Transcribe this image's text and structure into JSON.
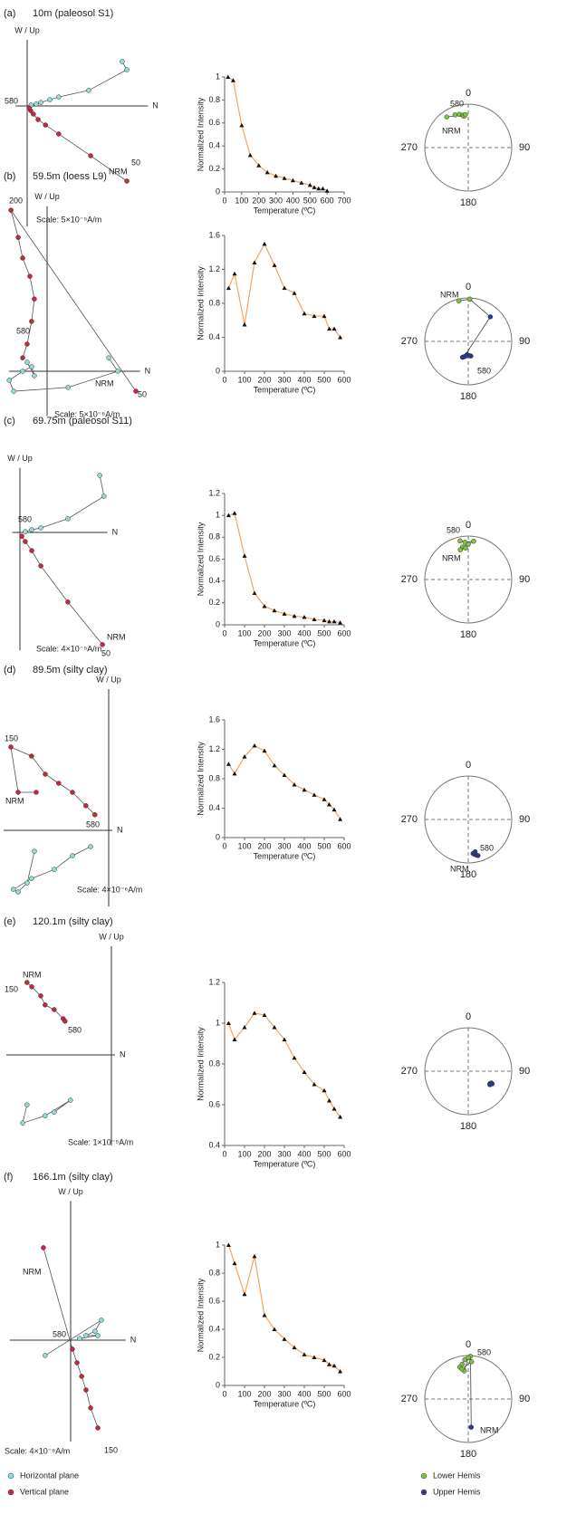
{
  "panels": [
    {
      "label": "(a)",
      "title": "10m (paleosol S1)",
      "zijderveld": {
        "up_label": "W / Up",
        "north_label": "N",
        "scale": "Scale: 5×10⁻⁵A/m",
        "xlim": [
          -0.3,
          3.1
        ],
        "ylim": [
          -3.1,
          1.7
        ],
        "horizontal": {
          "x": [
            2.44,
            2.56,
            1.58,
            0.81,
            0.58,
            0.35,
            0.23,
            0.1
          ],
          "y": [
            1.14,
            0.93,
            0.4,
            0.23,
            0.16,
            0.09,
            0.05,
            0.02
          ]
        },
        "vertical": {
          "x": [
            2.56,
            1.63,
            0.81,
            0.47,
            0.28,
            0.16,
            0.09,
            0.05
          ],
          "y": [
            -1.93,
            -1.28,
            -0.72,
            -0.49,
            -0.35,
            -0.21,
            -0.12,
            -0.05
          ]
        },
        "annotations": [
          "580",
          "NRM",
          "50"
        ]
      },
      "demag": {
        "type": "line",
        "ylabel": "Normalized Intensity",
        "xlabel": "Temperature (ºC)",
        "x": [
          20,
          50,
          100,
          150,
          200,
          250,
          300,
          350,
          400,
          450,
          500,
          525,
          550,
          575,
          600
        ],
        "values": [
          1,
          0.97,
          0.58,
          0.32,
          0.23,
          0.17,
          0.14,
          0.12,
          0.1,
          0.08,
          0.06,
          0.04,
          0.03,
          0.03,
          0.01
        ],
        "xlim": [
          0,
          700
        ],
        "xticks": [
          0,
          100,
          200,
          300,
          400,
          500,
          600,
          700
        ],
        "ylim": [
          0,
          1
        ],
        "yticks": [
          0,
          0.2,
          0.4,
          0.6,
          0.8,
          1
        ]
      },
      "stereonet": {
        "labels": [
          "0",
          "90",
          "180",
          "270"
        ],
        "dec": [
          338,
          345,
          350,
          352,
          355,
          325
        ],
        "inc": [
          20,
          22,
          25,
          28,
          25,
          15
        ],
        "annotations": [
          "580",
          "NRM"
        ]
      }
    },
    {
      "label": "(b)",
      "title": "59.5m (loess L9)",
      "zijderveld": {
        "up_label": "W / Up",
        "north_label": "N",
        "scale": "Scale: 5×10⁻⁶A/m",
        "xlim": [
          -1.1,
          2.7
        ],
        "ylim": [
          -1.3,
          4.8
        ],
        "horizontal": {
          "x": [
            1.79,
            2.05,
            0.61,
            -0.97,
            -1.1,
            -0.71,
            -0.45,
            -0.37,
            -0.58
          ],
          "y": [
            0.39,
            0,
            -0.47,
            -0.58,
            -0.26,
            0,
            0.13,
            -0.13,
            0.26
          ]
        },
        "vertical": {
          "x": [
            2.58,
            -1.05,
            -0.84,
            -0.71,
            -0.5,
            -0.37,
            -0.45,
            -0.58,
            -0.71
          ],
          "y": [
            -0.58,
            4.68,
            3.89,
            3.29,
            2.76,
            2.1,
            1.45,
            0.79,
            0.39
          ]
        },
        "annotations": [
          "200",
          "580",
          "NRM",
          "50"
        ]
      },
      "demag": {
        "type": "line",
        "ylabel": "Normalized Intensity",
        "xlabel": "Temperature (ºC)",
        "x": [
          20,
          50,
          100,
          150,
          200,
          250,
          300,
          350,
          400,
          450,
          500,
          525,
          550,
          580
        ],
        "values": [
          0.98,
          1.15,
          0.55,
          1.28,
          1.5,
          1.25,
          0.98,
          0.92,
          0.68,
          0.65,
          0.65,
          0.5,
          0.5,
          0.4
        ],
        "xlim": [
          0,
          600
        ],
        "xticks": [
          0,
          100,
          200,
          300,
          400,
          500,
          600
        ],
        "ylim": [
          0,
          1.6
        ],
        "yticks": [
          0,
          0.4,
          0.8,
          1.2,
          1.6
        ]
      },
      "stereonet": {
        "labels": [
          "0",
          "90",
          "180",
          "270"
        ],
        "dec": [
          347,
          2,
          42,
          195,
          170,
          185,
          200,
          175,
          190
        ],
        "inc": [
          5,
          3,
          -25,
          -60,
          -62,
          -65,
          -58,
          -63,
          -62
        ],
        "annotations": [
          "NRM",
          "580"
        ]
      }
    },
    {
      "label": "(c)",
      "title": "69.75m (paleosol S11)",
      "zijderveld": {
        "up_label": "W / Up",
        "north_label": "N",
        "scale": "Scale: 4×10⁻⁵A/m",
        "xlim": [
          -0.2,
          2.3
        ],
        "ylim": [
          -3.1,
          1.7
        ],
        "horizontal": {
          "x": [
            2.1,
            2.21,
            1.26,
            0.55,
            0.31,
            0.14
          ],
          "y": [
            1.5,
            0.95,
            0.36,
            0.12,
            0.07,
            0.02
          ]
        },
        "vertical": {
          "x": [
            2.17,
            1.26,
            0.55,
            0.31,
            0.14,
            0.05
          ],
          "y": [
            -2.95,
            -1.83,
            -0.88,
            -0.48,
            -0.24,
            -0.1
          ]
        },
        "annotations": [
          "580",
          "NRM",
          "50"
        ]
      },
      "demag": {
        "type": "line",
        "ylabel": "Normalized Intensity",
        "xlabel": "Temperature (ºC)",
        "x": [
          20,
          50,
          100,
          150,
          200,
          250,
          300,
          350,
          400,
          450,
          500,
          525,
          550,
          580
        ],
        "values": [
          1,
          1.02,
          0.63,
          0.29,
          0.17,
          0.13,
          0.1,
          0.08,
          0.07,
          0.05,
          0.04,
          0.03,
          0.03,
          0.02
        ],
        "xlim": [
          0,
          600
        ],
        "xticks": [
          0,
          100,
          200,
          300,
          400,
          500,
          600
        ],
        "ylim": [
          0,
          1.2
        ],
        "yticks": [
          0,
          0.2,
          0.4,
          0.6,
          0.8,
          1,
          1.2
        ]
      },
      "stereonet": {
        "labels": [
          "0",
          "90",
          "180",
          "270"
        ],
        "dec": [
          348,
          355,
          8,
          0,
          350,
          345,
          355
        ],
        "inc": [
          10,
          15,
          12,
          20,
          25,
          30,
          28
        ],
        "annotations": [
          "580",
          "NRM"
        ]
      }
    },
    {
      "label": "(d)",
      "title": "89.5m (silty clay)",
      "zijderveld": {
        "up_label": "W / Up",
        "north_label": "N",
        "scale": "Scale: 4×10⁻⁶A/m",
        "xlim": [
          -2.9,
          0.1
        ],
        "ylim": [
          -2.1,
          3.9
        ],
        "horizontal": {
          "x": [
            -2.05,
            -2.25,
            -2.5,
            -2.63,
            -2.13,
            -1.5,
            -1,
            -0.5
          ],
          "y": [
            -0.58,
            -1.45,
            -1.7,
            -1.63,
            -1.33,
            -1.08,
            -0.7,
            -0.45
          ]
        },
        "vertical": {
          "x": [
            -2,
            -2.5,
            -2.7,
            -2.13,
            -1.75,
            -1.38,
            -1,
            -0.63,
            -0.38
          ],
          "y": [
            1.05,
            1.05,
            2.3,
            2.05,
            1.55,
            1.3,
            1.05,
            0.68,
            0.43
          ]
        },
        "annotations": [
          "150",
          "NRM",
          "580"
        ]
      },
      "demag": {
        "type": "line",
        "ylabel": "Normalized Intensity",
        "xlabel": "Temperature (ºC)",
        "x": [
          20,
          50,
          100,
          150,
          200,
          250,
          300,
          350,
          400,
          450,
          500,
          525,
          550,
          580
        ],
        "values": [
          1,
          0.87,
          1.1,
          1.25,
          1.18,
          0.98,
          0.85,
          0.72,
          0.65,
          0.58,
          0.52,
          0.45,
          0.38,
          0.25
        ],
        "xlim": [
          0,
          600
        ],
        "xticks": [
          0,
          100,
          200,
          300,
          400,
          500,
          600
        ],
        "ylim": [
          0,
          1.6
        ],
        "yticks": [
          0,
          0.4,
          0.8,
          1.2,
          1.6
        ]
      },
      "stereonet": {
        "labels": [
          "0",
          "90",
          "180",
          "270"
        ],
        "dec": [
          165,
          168,
          170,
          172,
          168
        ],
        "inc": [
          -15,
          -18,
          -20,
          -22,
          -25
        ],
        "annotations": [
          "580",
          "NRM"
        ]
      }
    },
    {
      "label": "(e)",
      "title": "120.1m (silty clay)",
      "zijderveld": {
        "up_label": "W / Up",
        "north_label": "N",
        "scale": "Scale: 1×10⁻⁵A/m",
        "xlim": [
          -2.9,
          0.1
        ],
        "ylim": [
          -2.5,
          3
        ],
        "horizontal": {
          "x": [
            -2.33,
            -2.45,
            -1.83,
            -1.13,
            -1.58
          ],
          "y": [
            -1.38,
            -1.88,
            -1.68,
            -1.25,
            -1.58
          ]
        },
        "vertical": {
          "x": [
            -2.33,
            -2.2,
            -1.95,
            -1.83,
            -1.58,
            -1.33,
            -1.28
          ],
          "y": [
            2,
            1.88,
            1.63,
            1.38,
            1.25,
            1,
            0.93
          ]
        },
        "annotations": [
          "NRM",
          "150",
          "580"
        ]
      },
      "demag": {
        "type": "line",
        "ylabel": "Normalized Intensity",
        "xlabel": "Temperature (ºC)",
        "x": [
          20,
          50,
          100,
          150,
          200,
          250,
          300,
          350,
          400,
          450,
          500,
          525,
          550,
          580
        ],
        "values": [
          1,
          0.92,
          0.98,
          1.05,
          1.04,
          0.98,
          0.92,
          0.83,
          0.76,
          0.7,
          0.67,
          0.62,
          0.58,
          0.54
        ],
        "xlim": [
          0,
          600
        ],
        "xticks": [
          0,
          100,
          200,
          300,
          400,
          500,
          600
        ],
        "ylim": [
          0.4,
          1.2
        ],
        "yticks": [
          0.4,
          0.6,
          0.8,
          1,
          1.2
        ]
      },
      "stereonet": {
        "labels": [
          "0",
          "90",
          "180",
          "270"
        ],
        "dec": [
          117,
          120,
          118,
          122
        ],
        "inc": [
          -40,
          -42,
          -38,
          -41
        ]
      }
    },
    {
      "label": "(f)",
      "title": "166.1m (silty clay)",
      "zijderveld": {
        "up_label": "W / Up",
        "north_label": "N",
        "scale": "Scale: 4×10⁻⁶A/m",
        "xlim": [
          -2.1,
          1.9
        ],
        "ylim": [
          -3.5,
          4.8
        ],
        "horizontal": {
          "x": [
            -0.88,
            1.06,
            0.84,
            0.53,
            0.94,
            0.31
          ],
          "y": [
            -0.53,
            0.69,
            0.31,
            0.16,
            0.16,
            0.06
          ]
        },
        "vertical": {
          "x": [
            -0.94,
            0.06,
            0.22,
            0.38,
            0.53,
            0.69,
            0.94
          ],
          "y": [
            3.19,
            -0.31,
            -0.78,
            -1.25,
            -1.72,
            -2.34,
            -3.03
          ]
        },
        "annotations": [
          "NRM",
          "580",
          "150"
        ]
      },
      "demag": {
        "type": "line",
        "ylabel": "Normalized Intensity",
        "xlabel": "Temperature (ºC)",
        "x": [
          20,
          50,
          100,
          150,
          200,
          250,
          300,
          350,
          400,
          450,
          500,
          525,
          550,
          580
        ],
        "values": [
          1,
          0.87,
          0.65,
          0.92,
          0.5,
          0.4,
          0.33,
          0.27,
          0.22,
          0.2,
          0.18,
          0.15,
          0.14,
          0.1
        ],
        "xlim": [
          0,
          600
        ],
        "xticks": [
          0,
          100,
          200,
          300,
          400,
          500,
          600
        ],
        "ylim": [
          0,
          1
        ],
        "yticks": [
          0,
          0.2,
          0.4,
          0.6,
          0.8,
          1
        ]
      },
      "stereonet": {
        "labels": [
          "0",
          "90",
          "180",
          "270"
        ],
        "dec": [
          174,
          3,
          355,
          350,
          345,
          352,
          0,
          5,
          348
        ],
        "inc": [
          -35,
          2,
          10,
          20,
          25,
          35,
          5,
          15,
          30
        ],
        "annotations": [
          "580",
          "NRM"
        ]
      }
    }
  ],
  "colors": {
    "horizontal": "#8fdcd8",
    "vertical": "#c8283c",
    "lower": "#7dc242",
    "upper": "#2b3a8c",
    "curve": "#f4a460"
  },
  "legend": {
    "horizontal": "Horizontal plane",
    "vertical": "Vertical plane",
    "lower": "Lower Hemis",
    "upper": "Upper Hemis"
  }
}
